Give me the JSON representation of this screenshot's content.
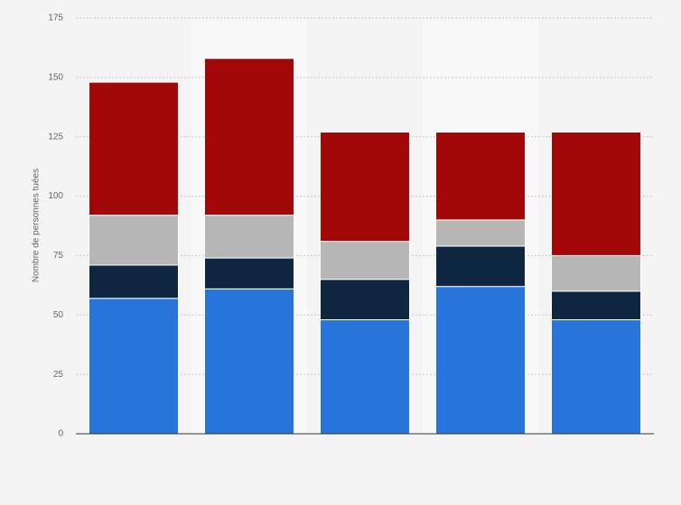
{
  "chart_data": {
    "type": "stacked-bar",
    "y_label": "Nombre de personnes tuées",
    "categories": [
      null,
      null,
      null,
      null,
      null
    ],
    "series": [
      {
        "color": "#2775db",
        "values": [
          57,
          61,
          48,
          62,
          48
        ]
      },
      {
        "color": "#0f2640",
        "values": [
          14,
          13,
          17,
          17,
          12
        ]
      },
      {
        "color": "#b6b6b6",
        "values": [
          21,
          18,
          16,
          11,
          15
        ]
      },
      {
        "color": "#a30808",
        "values": [
          56,
          66,
          46,
          37,
          52
        ]
      }
    ],
    "ylim": [
      0,
      175
    ],
    "yticks": [
      0,
      25,
      50,
      75,
      100,
      125,
      150,
      175
    ],
    "grid": true
  }
}
